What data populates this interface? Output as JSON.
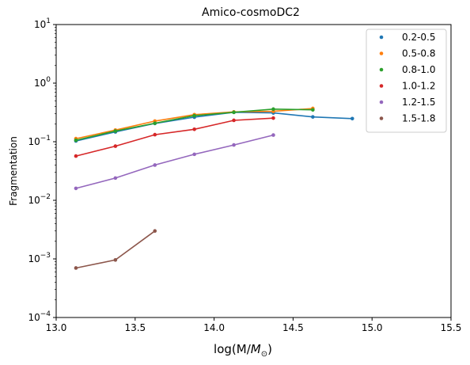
{
  "chart_data": {
    "type": "line",
    "title": "Amico-cosmoDC2",
    "xlabel": "log(M/",
    "xlabel_math": "M",
    "xlabel_sub": "⊙",
    "xlabel_close": ")",
    "ylabel": "Fragmentation",
    "xlim": [
      13.0,
      15.5
    ],
    "ylim": [
      0.0001,
      10
    ],
    "yscale": "log",
    "x_ticks": [
      "13.0",
      "13.5",
      "14.0",
      "14.5",
      "15.0",
      "15.5"
    ],
    "y_ticks": [
      {
        "base": "10",
        "exp": "−4"
      },
      {
        "base": "10",
        "exp": "−3"
      },
      {
        "base": "10",
        "exp": "−2"
      },
      {
        "base": "10",
        "exp": "−1"
      },
      {
        "base": "10",
        "exp": "0"
      },
      {
        "base": "10",
        "exp": "1"
      }
    ],
    "legend_position": "top-right",
    "series": [
      {
        "name": "0.2-0.5",
        "color": "#1f77b4",
        "x": [
          13.125,
          13.375,
          13.625,
          13.875,
          14.125,
          14.375,
          14.625,
          14.875
        ],
        "y": [
          0.103,
          0.147,
          0.205,
          0.262,
          0.318,
          0.31,
          0.265,
          0.248
        ]
      },
      {
        "name": "0.5-0.8",
        "color": "#ff7f0e",
        "x": [
          13.125,
          13.375,
          13.625,
          13.875,
          14.125,
          14.375,
          14.625
        ],
        "y": [
          0.113,
          0.158,
          0.225,
          0.29,
          0.323,
          0.33,
          0.37
        ]
      },
      {
        "name": "0.8-1.0",
        "color": "#2ca02c",
        "x": [
          13.125,
          13.375,
          13.625,
          13.875,
          14.125,
          14.375,
          14.625
        ],
        "y": [
          0.106,
          0.152,
          0.207,
          0.278,
          0.318,
          0.36,
          0.35
        ]
      },
      {
        "name": "1.0-1.2",
        "color": "#d62728",
        "x": [
          13.125,
          13.375,
          13.625,
          13.875,
          14.125,
          14.375
        ],
        "y": [
          0.057,
          0.084,
          0.132,
          0.163,
          0.232,
          0.253
        ]
      },
      {
        "name": "1.2-1.5",
        "color": "#9467bd",
        "x": [
          13.125,
          13.375,
          13.625,
          13.875,
          14.125,
          14.375
        ],
        "y": [
          0.016,
          0.024,
          0.04,
          0.061,
          0.088,
          0.13
        ]
      },
      {
        "name": "1.5-1.8",
        "color": "#8c564b",
        "x": [
          13.125,
          13.375,
          13.625
        ],
        "y": [
          0.0007,
          0.00096,
          0.003
        ]
      }
    ]
  }
}
